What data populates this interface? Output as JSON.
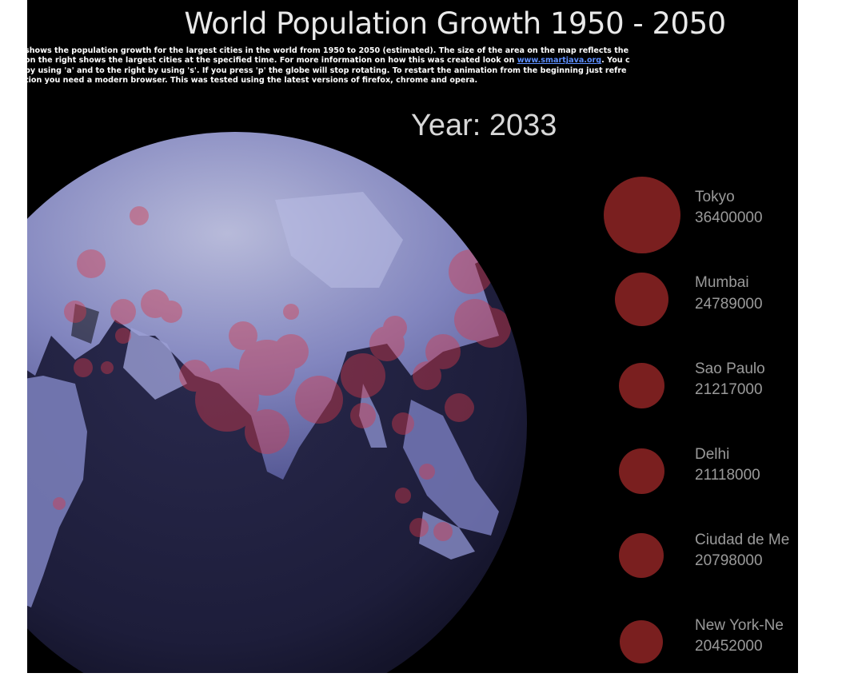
{
  "page": {
    "title": "World Population Growth 1950 - 2050",
    "intro_lines": [
      "shows the population growth for the largest cities in the world from 1950 to 2050 (estimated). The size of the area on the map reflects the",
      "on the right shows the largest cities at the specified time. For more information on how this was created look on ",
      "by using 'a' and to the right by using 's'. If you press 'p' the globe will stop rotating. To restart the animation from the beginning just refre",
      "tion you need a modern browser. This was tested using the latest versions of firefox, chrome and opera."
    ],
    "intro_link": "www.smartjava.org",
    "intro_after_link": ". You c",
    "year_label": "Year: 2033"
  },
  "colors": {
    "background": "#000000",
    "city_bubble": "#7a1f1f",
    "globe_land": "#7f84c4",
    "globe_ocean": "#1b1b38",
    "link": "#5f90ff"
  },
  "cities": [
    {
      "name": "Tokyo",
      "population": "36400000"
    },
    {
      "name": "Mumbai",
      "population": "24789000"
    },
    {
      "name": "Sao Paulo",
      "population": "21217000"
    },
    {
      "name": "Delhi",
      "population": "21118000"
    },
    {
      "name": "Ciudad de Me",
      "population": "20798000"
    },
    {
      "name": "New York-Ne",
      "population": "20452000"
    }
  ]
}
